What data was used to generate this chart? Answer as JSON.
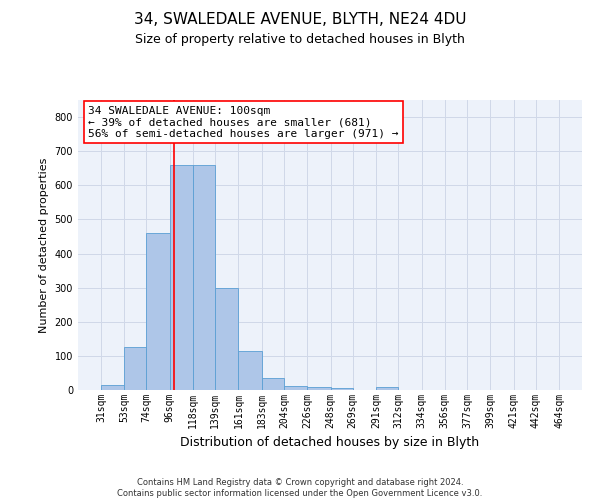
{
  "title_line1": "34, SWALEDALE AVENUE, BLYTH, NE24 4DU",
  "title_line2": "Size of property relative to detached houses in Blyth",
  "xlabel": "Distribution of detached houses by size in Blyth",
  "ylabel": "Number of detached properties",
  "footer_line1": "Contains HM Land Registry data © Crown copyright and database right 2024.",
  "footer_line2": "Contains public sector information licensed under the Open Government Licence v3.0.",
  "annotation_line1": "34 SWALEDALE AVENUE: 100sqm",
  "annotation_line2": "← 39% of detached houses are smaller (681)",
  "annotation_line3": "56% of semi-detached houses are larger (971) →",
  "bar_edges": [
    31,
    53,
    74,
    96,
    118,
    139,
    161,
    183,
    204,
    226,
    248,
    269,
    291,
    312,
    334,
    356,
    377,
    399,
    421,
    442,
    464
  ],
  "bar_heights": [
    15,
    125,
    460,
    660,
    660,
    300,
    115,
    35,
    12,
    8,
    5,
    0,
    8,
    0,
    0,
    0,
    0,
    0,
    0,
    0
  ],
  "bar_color": "#aec6e8",
  "bar_edgecolor": "#5a9fd4",
  "redline_x": 100,
  "ylim": [
    0,
    850
  ],
  "yticks": [
    0,
    100,
    200,
    300,
    400,
    500,
    600,
    700,
    800
  ],
  "grid_color": "#d0d8e8",
  "background_color": "#edf2fa",
  "title1_fontsize": 11,
  "title2_fontsize": 9,
  "ylabel_fontsize": 8,
  "xlabel_fontsize": 9,
  "tick_fontsize": 7,
  "footer_fontsize": 6,
  "annot_fontsize": 8
}
